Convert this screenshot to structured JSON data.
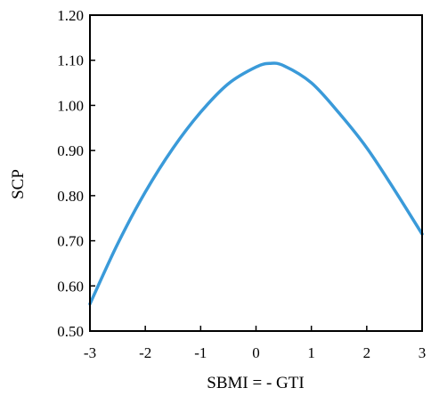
{
  "chart_data": {
    "type": "line",
    "title": "",
    "xlabel": "SBMI = - GTI",
    "ylabel": "SCP",
    "xlim": [
      -3,
      3
    ],
    "ylim": [
      0.5,
      1.2
    ],
    "x_ticks": [
      -3,
      -2,
      -1,
      0,
      1,
      2,
      3
    ],
    "x_tick_labels": [
      "-3",
      "-2",
      "-1",
      "0",
      "1",
      "2",
      "3"
    ],
    "y_ticks": [
      0.5,
      0.6,
      0.7,
      0.8,
      0.9,
      1.0,
      1.1,
      1.2
    ],
    "y_tick_labels": [
      "0.50",
      "0.60",
      "0.70",
      "0.80",
      "0.90",
      "1.00",
      "1.10",
      "1.20"
    ],
    "grid": false,
    "legend": "none",
    "series": [
      {
        "color": "#3a9ad9",
        "x": [
          -3,
          -2.5,
          -2,
          -1.5,
          -1,
          -0.5,
          0,
          0.25,
          0.5,
          1,
          1.5,
          2,
          2.5,
          3
        ],
        "y": [
          0.56,
          0.693,
          0.808,
          0.905,
          0.985,
          1.048,
          1.085,
          1.093,
          1.088,
          1.05,
          0.983,
          0.906,
          0.813,
          0.715
        ]
      }
    ]
  }
}
